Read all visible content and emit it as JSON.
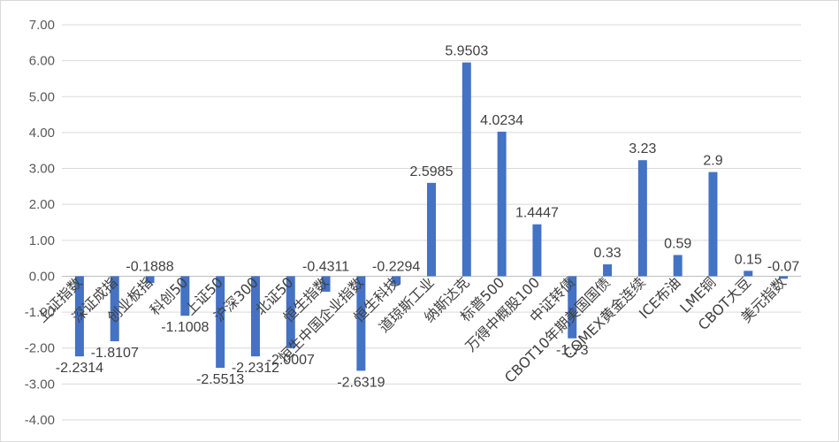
{
  "chart_data": {
    "type": "bar",
    "title": "",
    "xlabel": "",
    "ylabel": "",
    "ylim": [
      -4,
      7
    ],
    "ytick_step": 1,
    "ytick_decimals": 2,
    "grid": true,
    "legend": "none",
    "bar_color": "#4472c4",
    "categories": [
      "上证指数",
      "深证成指",
      "创业板指",
      "科创50",
      "上证50",
      "沪深300",
      "北证50",
      "恒生指数",
      "恒生中国企业指数",
      "恒生科技",
      "道琼斯工业",
      "纳斯达克",
      "标普500",
      "万得中概股100",
      "中证转债",
      "CBOT10年期美国国债",
      "COMEX黄金连续",
      "ICE布油",
      "LME铜",
      "CBOT大豆",
      "美元指数"
    ],
    "values": [
      -2.2314,
      -1.8107,
      -0.1888,
      -1.1008,
      -2.5513,
      -2.2312,
      -2.0007,
      -0.4311,
      -2.6319,
      -0.2294,
      2.5985,
      5.9503,
      4.0234,
      1.4447,
      -1.73,
      0.33,
      3.23,
      0.59,
      2.9,
      0.15,
      -0.07
    ],
    "data_labels": [
      "-2.2314",
      "-1.8107",
      "-0.1888",
      "-1.1008",
      "-2.5513",
      "-2.2312",
      "-2.0007",
      "-0.4311",
      "-2.6319",
      "-0.2294",
      "2.5985",
      "5.9503",
      "4.0234",
      "1.4447",
      "-1.73",
      "0.33",
      "3.23",
      "0.59",
      "2.9",
      "0.15",
      "-0.07"
    ]
  }
}
